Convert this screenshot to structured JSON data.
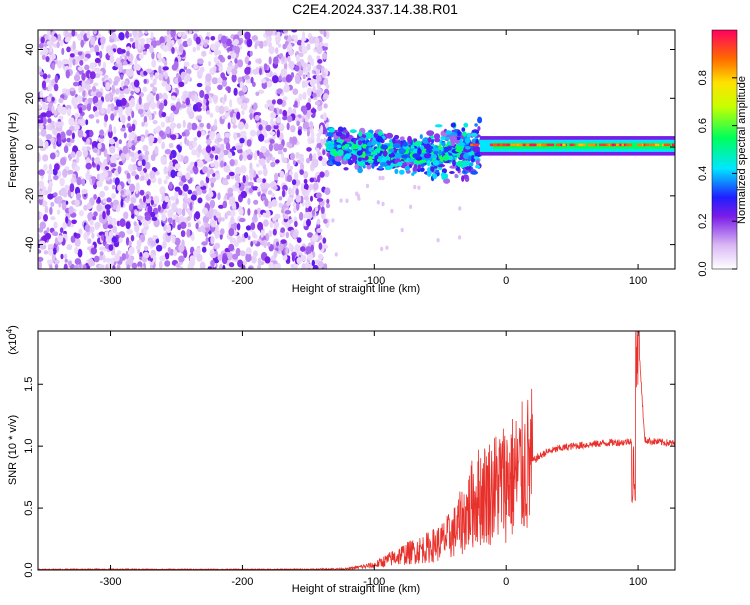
{
  "title": "C2E4.2024.337.14.38.R01",
  "chart_data": [
    {
      "type": "heatmap",
      "xlabel": "Height of straight line (km)",
      "ylabel": "Frequency (Hz)",
      "xlim": [
        -355,
        128
      ],
      "ylim": [
        -50,
        48
      ],
      "x_ticks": [
        -300,
        -200,
        -100,
        0,
        100
      ],
      "x_tick_labels": [
        "-300",
        "-200",
        "-100",
        "0",
        "100"
      ],
      "y_ticks": [
        -40,
        -20,
        0,
        20,
        40
      ],
      "y_tick_labels": [
        "-40",
        "-20",
        "0",
        "20",
        "40"
      ],
      "colorbar": {
        "label": "Normalized spectral amplitude",
        "range": [
          0,
          1
        ],
        "ticks": [
          0.0,
          0.2,
          0.4,
          0.6,
          0.8
        ],
        "tick_labels": [
          "0.0",
          "0.2",
          "0.4",
          "0.6",
          "0.8"
        ],
        "colormap": "rainbow"
      },
      "regions": [
        {
          "x_range": [
            -355,
            -135
          ],
          "freq_range": [
            -50,
            48
          ],
          "amplitude": 0.1
        },
        {
          "x_range": [
            -135,
            -60
          ],
          "freq_range": [
            -12,
            10
          ],
          "amplitude": 0.4
        },
        {
          "x_range": [
            -60,
            -20
          ],
          "freq_range": [
            -15,
            12
          ],
          "amplitude": 0.45
        },
        {
          "x_range": [
            -20,
            128
          ],
          "freq_range": [
            -2,
            3
          ],
          "amplitude": 0.45
        },
        {
          "x_range": [
            -30,
            0
          ],
          "freq_range": [
            0,
            1
          ],
          "amplitude": 0.9
        },
        {
          "x_range": [
            70,
            128
          ],
          "freq_range": [
            0,
            2
          ],
          "amplitude": 0.9
        }
      ]
    },
    {
      "type": "line",
      "xlabel": "Height of straight line (km)",
      "ylabel": "SNR (10 * v/v)",
      "y_multiplier": "(x10",
      "y_multiplier_exp": "4",
      "y_multiplier_close": ")",
      "xlim": [
        -355,
        128
      ],
      "ylim": [
        0,
        1.93
      ],
      "x_ticks": [
        -300,
        -200,
        -100,
        0,
        100
      ],
      "x_tick_labels": [
        "-300",
        "-200",
        "-100",
        "0",
        "100"
      ],
      "y_ticks": [
        0.0,
        0.5,
        1.0,
        1.5
      ],
      "y_tick_labels": [
        "0.0",
        "0.5",
        "1.0",
        "1.5"
      ],
      "color": "#e8302b",
      "series": [
        {
          "x": [
            -355,
            -300,
            -250,
            -200,
            -150,
            -120,
            -100,
            -80,
            -60,
            -50,
            -40,
            -30,
            -25,
            -20,
            -10,
            -5,
            0,
            10,
            20,
            30,
            40,
            50,
            60,
            70,
            80,
            90,
            95,
            98,
            100,
            105,
            110,
            128
          ],
          "y": [
            0.005,
            0.006,
            0.005,
            0.005,
            0.006,
            0.01,
            0.04,
            0.12,
            0.18,
            0.22,
            0.3,
            0.45,
            0.55,
            0.6,
            0.65,
            0.7,
            0.72,
            0.78,
            0.88,
            0.95,
            0.98,
            1.0,
            1.01,
            1.02,
            1.03,
            1.03,
            1.05,
            0.55,
            1.93,
            1.05,
            1.04,
            1.02
          ]
        }
      ]
    }
  ]
}
